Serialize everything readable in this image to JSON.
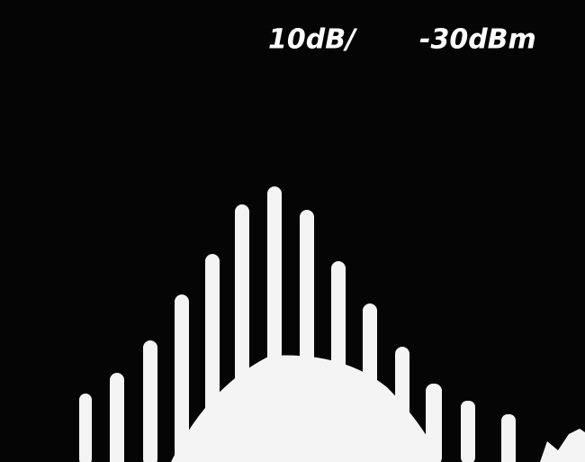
{
  "header": {
    "scale": "10dB/",
    "reference": "-30dBm"
  }
}
